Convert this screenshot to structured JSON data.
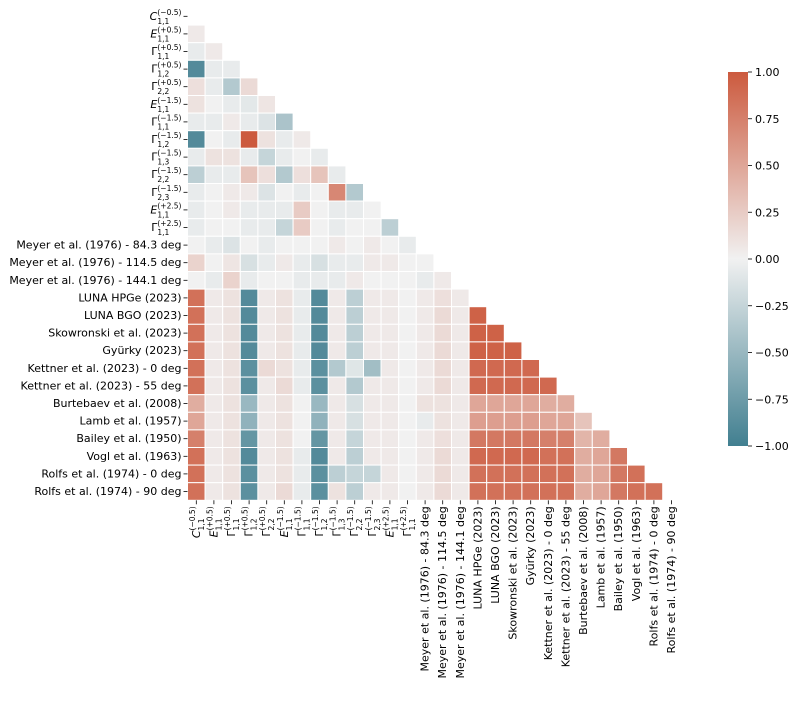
{
  "chart_data": {
    "type": "heatmap",
    "title": "",
    "xlabel": "",
    "ylabel": "",
    "mask": "upper-triangle",
    "colormap": {
      "name": "diverging",
      "low_color": "#417f90",
      "mid_color": "#f1f1f1",
      "high_color": "#cc5a3e",
      "vmin": -1.0,
      "vmax": 1.0
    },
    "colorbar": {
      "ticks": [
        1.0,
        0.75,
        0.5,
        0.25,
        0.0,
        -0.25,
        -0.5,
        -0.75,
        -1.0
      ],
      "tick_labels": [
        "1.00",
        "0.75",
        "0.50",
        "0.25",
        "0.00",
        "−0.25",
        "−0.50",
        "−0.75",
        "−1.00"
      ]
    },
    "labels": [
      {
        "base": "C",
        "sub": "1,1",
        "sup": "(−0.5)",
        "italic": true
      },
      {
        "base": "E",
        "sub": "1,1",
        "sup": "(+0.5)",
        "italic": true
      },
      {
        "base": "Γ",
        "sub": "1,1",
        "sup": "(+0.5)",
        "italic": false
      },
      {
        "base": "Γ",
        "sub": "1,2",
        "sup": "(+0.5)",
        "italic": false
      },
      {
        "base": "Γ",
        "sub": "2,2",
        "sup": "(+0.5)",
        "italic": false
      },
      {
        "base": "E",
        "sub": "1,1",
        "sup": "(−1.5)",
        "italic": true
      },
      {
        "base": "Γ",
        "sub": "1,1",
        "sup": "(−1.5)",
        "italic": false
      },
      {
        "base": "Γ",
        "sub": "1,2",
        "sup": "(−1.5)",
        "italic": false
      },
      {
        "base": "Γ",
        "sub": "1,3",
        "sup": "(−1.5)",
        "italic": false
      },
      {
        "base": "Γ",
        "sub": "2,2",
        "sup": "(−1.5)",
        "italic": false
      },
      {
        "base": "Γ",
        "sub": "2,3",
        "sup": "(−1.5)",
        "italic": false
      },
      {
        "base": "E",
        "sub": "1,1",
        "sup": "(+2.5)",
        "italic": true
      },
      {
        "base": "Γ",
        "sub": "1,1",
        "sup": "(+2.5)",
        "italic": false
      },
      {
        "text": "Meyer et al. (1976) - 84.3 deg"
      },
      {
        "text": "Meyer et al. (1976) - 114.5 deg"
      },
      {
        "text": "Meyer et al. (1976) - 144.1 deg"
      },
      {
        "text": "LUNA HPGe (2023)"
      },
      {
        "text": "LUNA BGO (2023)"
      },
      {
        "text": "Skowronski et al. (2023)"
      },
      {
        "text": "Gyürky (2023)"
      },
      {
        "text": "Kettner et al. (2023) - 0 deg"
      },
      {
        "text": "Kettner et al. (2023) - 55 deg"
      },
      {
        "text": "Burtebaev et al. (2008)"
      },
      {
        "text": "Lamb et al. (1957)"
      },
      {
        "text": "Bailey et al. (1950)"
      },
      {
        "text": "Vogl et al. (1963)"
      },
      {
        "text": "Rolfs et al. (1974) - 0 deg"
      },
      {
        "text": "Rolfs et al. (1974) - 90 deg"
      }
    ],
    "values": [
      [],
      [
        0.05
      ],
      [
        -0.05,
        0.05
      ],
      [
        -0.9,
        -0.05,
        -0.05
      ],
      [
        0.12,
        -0.05,
        -0.35,
        0.15
      ],
      [
        0.1,
        0.0,
        -0.05,
        -0.08,
        0.08
      ],
      [
        -0.05,
        -0.05,
        0.05,
        -0.05,
        -0.12,
        -0.4
      ],
      [
        -0.9,
        0.0,
        -0.05,
        1.0,
        0.1,
        -0.05,
        0.05
      ],
      [
        -0.05,
        0.1,
        0.1,
        -0.05,
        -0.25,
        -0.05,
        0.0,
        -0.05
      ],
      [
        -0.3,
        -0.05,
        -0.05,
        0.3,
        0.12,
        -0.35,
        0.12,
        0.3,
        -0.05
      ],
      [
        -0.05,
        0.0,
        0.05,
        0.05,
        -0.12,
        0.0,
        -0.05,
        0.0,
        0.7,
        -0.35
      ],
      [
        -0.05,
        0.0,
        0.05,
        -0.05,
        -0.05,
        -0.05,
        0.25,
        0.0,
        -0.05,
        -0.05,
        0.0
      ],
      [
        -0.05,
        0.0,
        0.0,
        -0.05,
        -0.05,
        -0.25,
        0.25,
        0.0,
        -0.05,
        0.0,
        0.0,
        -0.3
      ],
      [
        0.0,
        -0.05,
        -0.12,
        0.0,
        -0.05,
        0.0,
        0.0,
        0.0,
        0.05,
        0.0,
        0.05,
        0.0,
        -0.05
      ],
      [
        0.2,
        0.0,
        0.08,
        -0.15,
        -0.05,
        0.05,
        -0.05,
        -0.15,
        -0.05,
        -0.05,
        0.05,
        0.05,
        0.0,
        0.0
      ],
      [
        0.0,
        -0.05,
        0.2,
        -0.05,
        0.0,
        0.0,
        -0.05,
        -0.05,
        -0.05,
        0.05,
        0.0,
        0.0,
        0.0,
        -0.05,
        0.05
      ],
      [
        0.85,
        0.05,
        0.1,
        -0.9,
        0.05,
        0.1,
        -0.05,
        -0.9,
        0.05,
        -0.3,
        0.05,
        0.05,
        0.0,
        0.05,
        0.12,
        0.05
      ],
      [
        0.85,
        0.05,
        0.1,
        -0.9,
        0.05,
        0.1,
        -0.05,
        -0.9,
        0.05,
        -0.3,
        0.05,
        0.05,
        0.0,
        0.05,
        0.15,
        0.05,
        0.95
      ],
      [
        0.85,
        0.05,
        0.1,
        -0.9,
        0.05,
        0.1,
        -0.05,
        -0.9,
        0.05,
        -0.3,
        0.05,
        0.05,
        0.0,
        0.05,
        0.15,
        0.05,
        0.95,
        0.95
      ],
      [
        0.85,
        0.05,
        0.1,
        -0.9,
        0.05,
        0.1,
        -0.05,
        -0.9,
        0.05,
        -0.3,
        0.05,
        0.05,
        0.0,
        0.05,
        0.15,
        0.05,
        0.95,
        0.95,
        0.95
      ],
      [
        0.85,
        0.05,
        0.1,
        -0.85,
        0.15,
        0.1,
        -0.05,
        -0.85,
        -0.35,
        -0.1,
        -0.45,
        0.05,
        0.0,
        0.05,
        0.15,
        0.05,
        0.9,
        0.9,
        0.9,
        0.9
      ],
      [
        0.85,
        0.05,
        0.1,
        -0.85,
        0.05,
        0.15,
        -0.05,
        -0.85,
        0.05,
        -0.35,
        0.05,
        0.05,
        0.0,
        0.05,
        0.15,
        0.05,
        0.9,
        0.9,
        0.9,
        0.9,
        0.9
      ],
      [
        0.45,
        0.05,
        0.1,
        -0.5,
        0.05,
        0.1,
        0.0,
        -0.5,
        0.05,
        -0.15,
        0.05,
        0.05,
        0.0,
        0.1,
        0.1,
        0.05,
        0.5,
        0.5,
        0.5,
        0.5,
        0.45,
        0.45
      ],
      [
        0.5,
        0.05,
        0.1,
        -0.55,
        0.05,
        0.1,
        0.0,
        -0.55,
        0.05,
        -0.15,
        0.05,
        0.05,
        0.0,
        -0.05,
        0.1,
        0.05,
        0.55,
        0.55,
        0.55,
        0.55,
        0.5,
        0.5,
        0.3
      ],
      [
        0.75,
        0.05,
        0.1,
        -0.8,
        0.05,
        0.1,
        0.0,
        -0.8,
        0.05,
        -0.25,
        0.05,
        0.05,
        0.0,
        0.05,
        0.12,
        0.05,
        0.8,
        0.8,
        0.8,
        0.8,
        0.75,
        0.75,
        0.4,
        0.45
      ],
      [
        0.85,
        0.05,
        0.1,
        -0.9,
        0.05,
        0.1,
        -0.05,
        -0.9,
        0.05,
        -0.3,
        0.05,
        0.05,
        0.0,
        0.05,
        0.15,
        0.05,
        0.9,
        0.9,
        0.9,
        0.9,
        0.85,
        0.85,
        0.45,
        0.5,
        0.8
      ],
      [
        0.85,
        0.05,
        0.1,
        -0.85,
        0.05,
        0.1,
        -0.05,
        -0.85,
        -0.3,
        -0.25,
        -0.25,
        0.05,
        0.0,
        0.05,
        0.15,
        0.05,
        0.85,
        0.85,
        0.85,
        0.85,
        0.85,
        0.85,
        0.45,
        0.5,
        0.8,
        0.85
      ],
      [
        0.85,
        0.05,
        0.1,
        -0.85,
        0.05,
        0.15,
        -0.05,
        -0.85,
        0.1,
        -0.3,
        0.05,
        0.05,
        0.0,
        0.05,
        0.15,
        0.05,
        0.85,
        0.85,
        0.85,
        0.85,
        0.85,
        0.85,
        0.45,
        0.5,
        0.8,
        0.85,
        0.85
      ]
    ]
  }
}
